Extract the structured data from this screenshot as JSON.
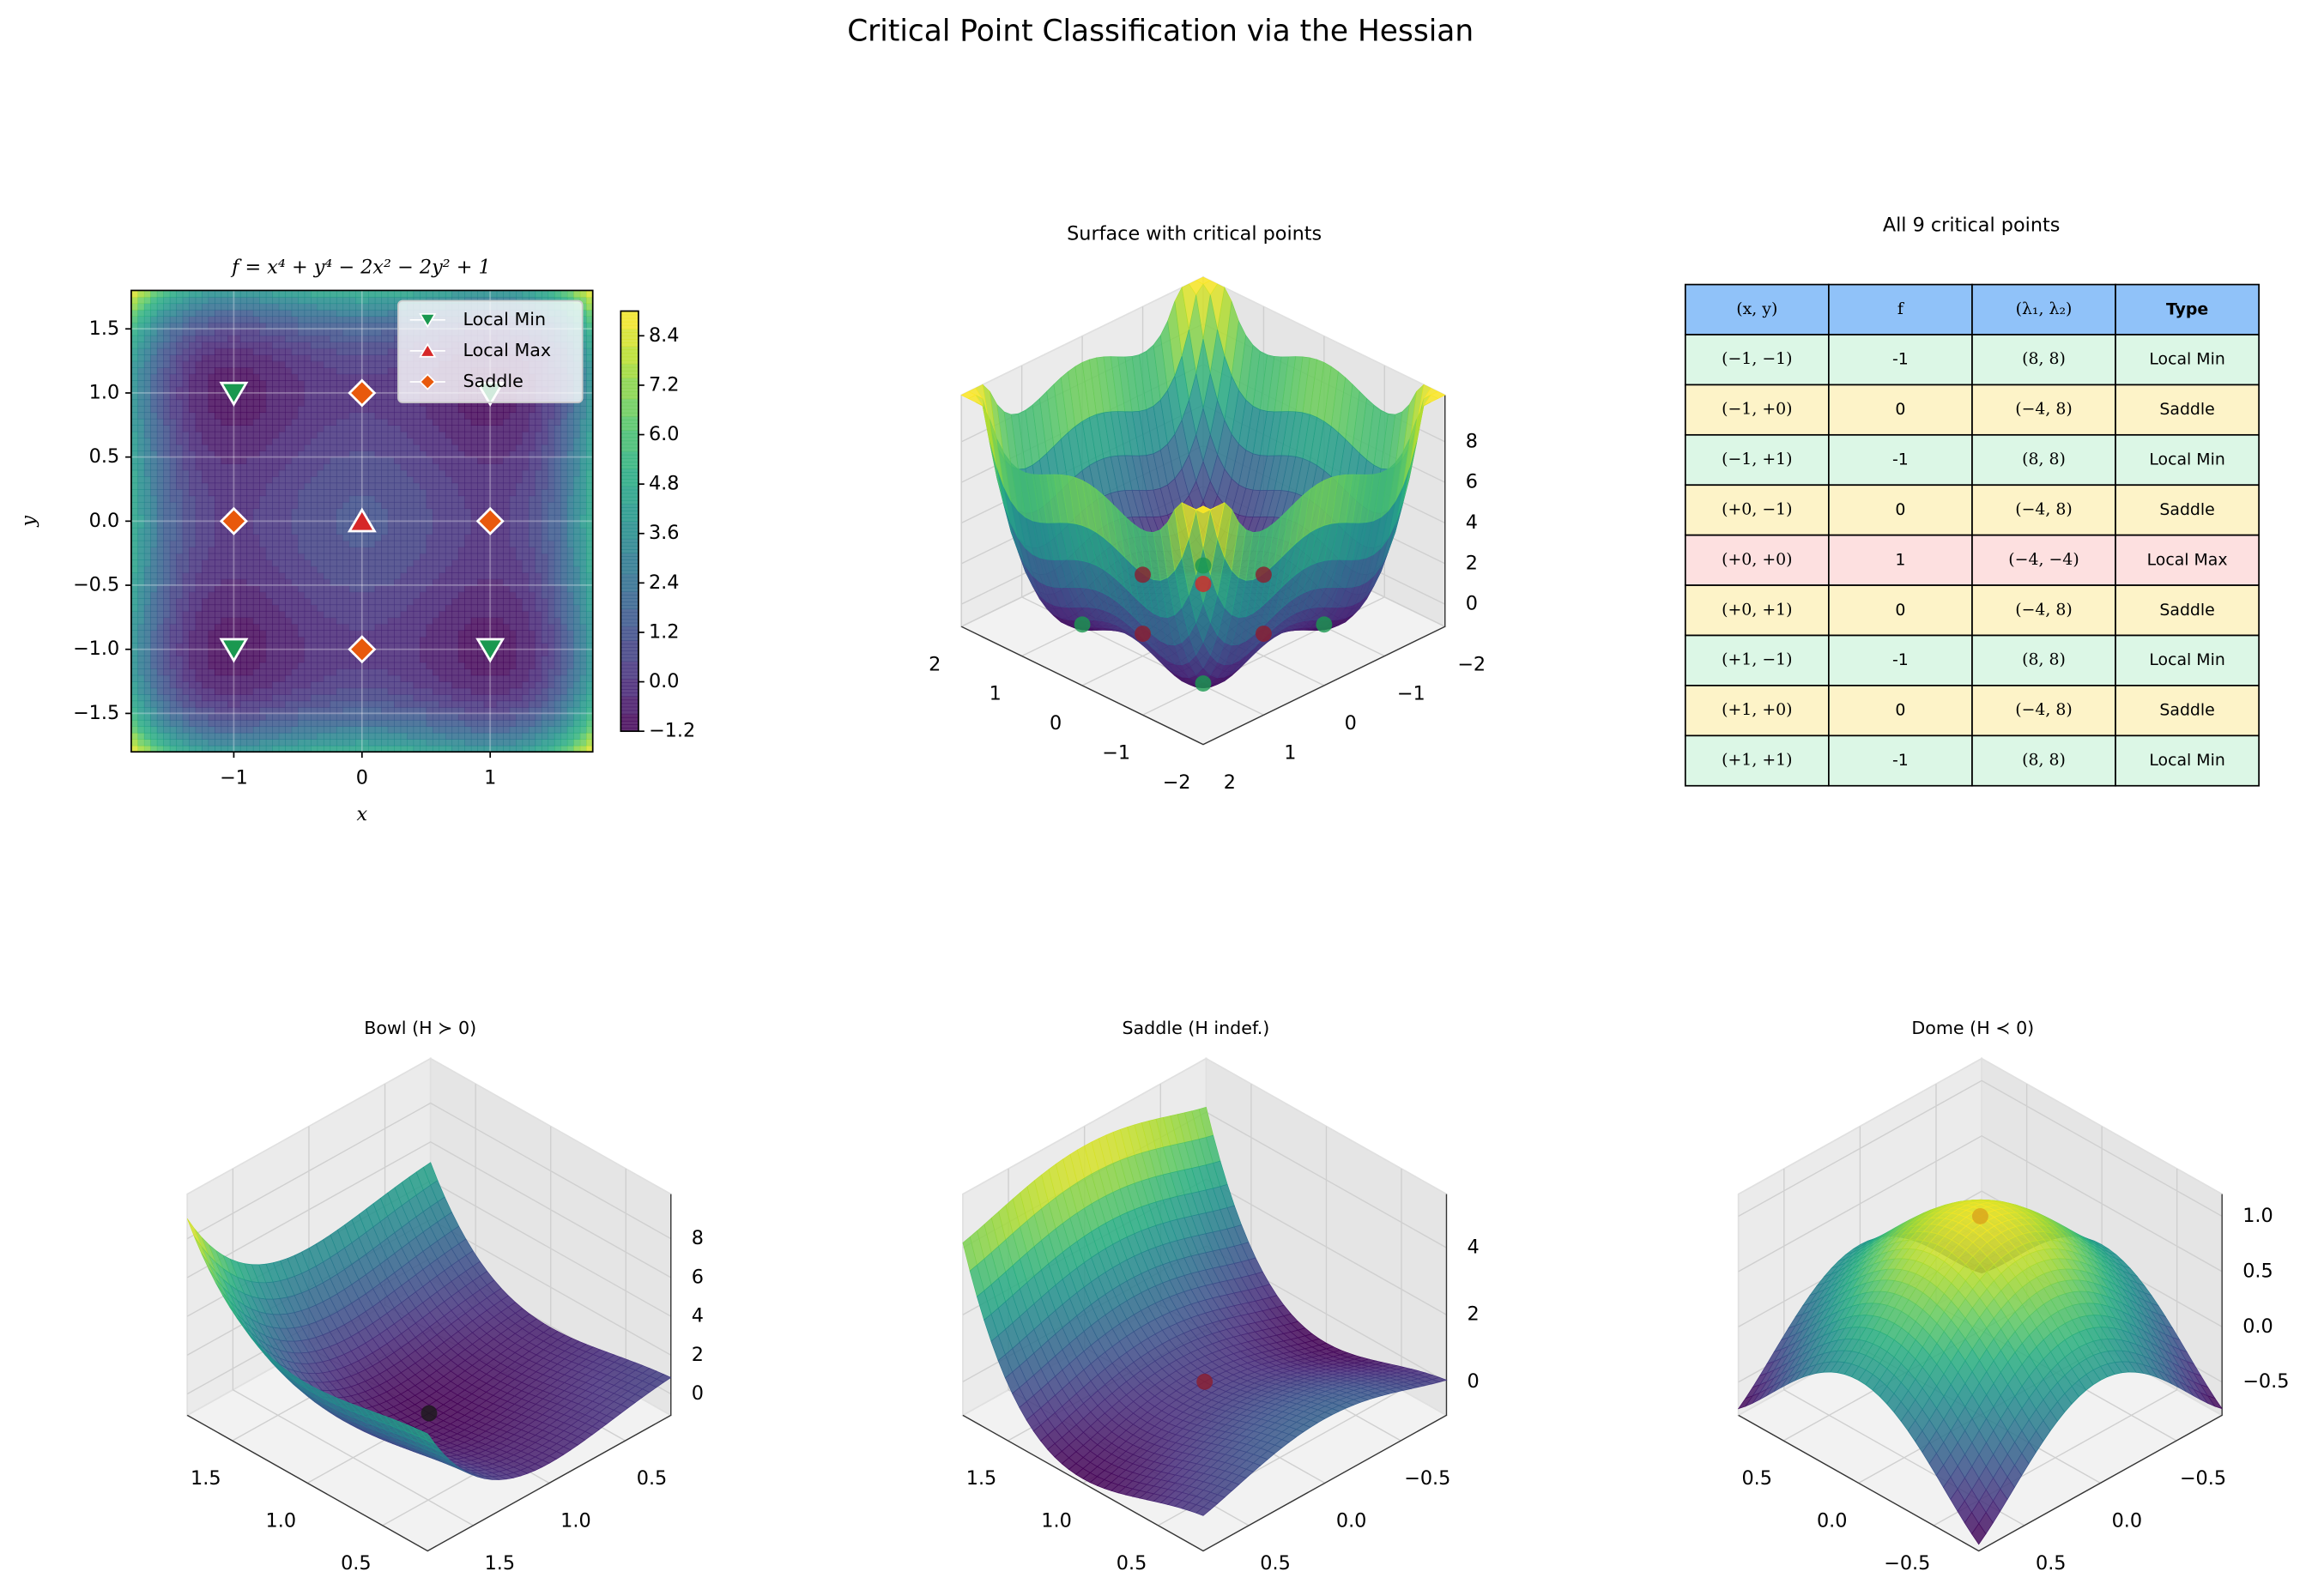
{
  "title": "Critical Point Classification via the Hessian",
  "chart_data": [
    {
      "type": "contour",
      "title": "f = x⁴ + y⁴ − 2x² − 2y² + 1",
      "x_label": "x",
      "y_label": "y",
      "xlim": [
        -1.8,
        1.8
      ],
      "ylim": [
        -1.8,
        1.8
      ],
      "xticks": [
        {
          "value": -1,
          "label": "−1"
        },
        0,
        1
      ],
      "yticks": [
        {
          "value": -1.5,
          "label": "−1.5"
        },
        {
          "value": -1,
          "label": "−1.0"
        },
        {
          "value": -0.5,
          "label": "−0.5"
        },
        {
          "value": 0,
          "label": "0.0"
        },
        0.5,
        {
          "value": 1,
          "label": "1.0"
        },
        1.5
      ],
      "grid": true,
      "colormap": "viridis",
      "legend": "upper right",
      "colorbar": {
        "lim": [
          -1.2,
          9.0
        ],
        "ticks": [
          {
            "value": -1.2,
            "label": "−1.2"
          },
          {
            "value": 0,
            "label": "0.0"
          },
          1.2,
          2.4,
          3.6,
          4.8,
          {
            "value": 6,
            "label": "6.0"
          },
          7.2,
          8.4
        ]
      },
      "series": [
        {
          "name": "Local Min",
          "color": "#1a9850",
          "marker": "v",
          "x": [
            -1,
            -1,
            1,
            1
          ],
          "y": [
            -1,
            1,
            -1,
            1
          ]
        },
        {
          "name": "Local Max",
          "color": "#d62728",
          "marker": "^",
          "x": [
            0
          ],
          "y": [
            0
          ]
        },
        {
          "name": "Saddle",
          "color": "#e8590c",
          "marker": "D",
          "x": [
            -1,
            0,
            0,
            1
          ],
          "y": [
            0,
            -1,
            1,
            0
          ]
        }
      ]
    },
    {
      "type": "surface3d",
      "title": "Surface with critical points",
      "colormap": "viridis",
      "xlim": [
        -2,
        2
      ],
      "ylim": [
        -2,
        2
      ],
      "zlim": [
        -1.1,
        10.3
      ],
      "xticks": [
        {
          "value": -2,
          "label": "−2"
        },
        {
          "value": -1,
          "label": "−1"
        },
        0,
        1,
        2
      ],
      "yticks": [
        {
          "value": -2,
          "label": "−2"
        },
        {
          "value": -1,
          "label": "−1"
        },
        0,
        1,
        2
      ],
      "zticks": [
        0,
        2,
        4,
        6,
        8
      ],
      "points": {
        "x": [
          -1,
          -1,
          -1,
          0,
          0,
          0,
          1,
          1,
          1
        ],
        "y": [
          -1,
          0,
          1,
          -1,
          0,
          1,
          -1,
          0,
          1
        ],
        "z": [
          -1,
          0,
          -1,
          0,
          1,
          0,
          -1,
          0,
          -1
        ],
        "colors": [
          "#1a9850",
          "#8b1e2e",
          "#1a9850",
          "#8b1e2e",
          "#d62728",
          "#8b1e2e",
          "#1a9850",
          "#8b1e2e",
          "#1a9850"
        ]
      }
    },
    {
      "type": "surface3d",
      "title": "Bowl (H ≻ 0)",
      "colormap": "viridis",
      "xlim": [
        0.2,
        1.8
      ],
      "ylim": [
        0.2,
        1.8
      ],
      "zlim": [
        -1.1,
        10.3
      ],
      "xticks": [
        0.5,
        {
          "value": 1,
          "label": "1.0"
        },
        1.5
      ],
      "yticks": [
        0.5,
        {
          "value": 1,
          "label": "1.0"
        },
        1.5
      ],
      "zticks": [
        0,
        2,
        4,
        6,
        8
      ],
      "points": {
        "x": [
          1
        ],
        "y": [
          1
        ],
        "z": [
          -1
        ],
        "colors": [
          "#1a1a1a"
        ]
      }
    },
    {
      "type": "surface3d",
      "title": "Saddle (H indef.)",
      "colormap": "viridis",
      "xlim": [
        0.2,
        1.8
      ],
      "ylim": [
        -0.8,
        0.8
      ],
      "zlim": [
        -1.0,
        5.6
      ],
      "xticks": [
        0.5,
        {
          "value": 1,
          "label": "1.0"
        },
        1.5
      ],
      "yticks": [
        {
          "value": -0.5,
          "label": "−0.5"
        },
        {
          "value": 0,
          "label": "0.0"
        },
        0.5
      ],
      "zticks": [
        0,
        2,
        4
      ],
      "points": {
        "x": [
          1
        ],
        "y": [
          0
        ],
        "z": [
          0
        ],
        "colors": [
          "#8b1e2e"
        ]
      }
    },
    {
      "type": "surface3d",
      "title": "Dome (H ≺ 0)",
      "colormap": "viridis",
      "xlim": [
        -0.8,
        0.8
      ],
      "ylim": [
        -0.8,
        0.8
      ],
      "zlim": [
        -0.8,
        1.2
      ],
      "xticks": [
        {
          "value": -0.5,
          "label": "−0.5"
        },
        {
          "value": 0,
          "label": "0.0"
        },
        0.5
      ],
      "yticks": [
        {
          "value": -0.5,
          "label": "−0.5"
        },
        {
          "value": 0,
          "label": "0.0"
        },
        0.5
      ],
      "zticks": [
        {
          "value": -0.5,
          "label": "−0.5"
        },
        {
          "value": 0,
          "label": "0.0"
        },
        0.5,
        {
          "value": 1,
          "label": "1.0"
        }
      ],
      "points": {
        "x": [
          0
        ],
        "y": [
          0
        ],
        "z": [
          1
        ],
        "colors": [
          "#d9a21b"
        ]
      }
    }
  ],
  "table": {
    "title": "All 9 critical points",
    "header": [
      "(x, y)",
      "f",
      "(λ₁, λ₂)",
      "Type"
    ],
    "header_color": "#90c2f9",
    "rows": [
      [
        "(−1, −1)",
        -1,
        "(8, 8)",
        "Local Min"
      ],
      [
        "(−1, +0)",
        0,
        "(−4, 8)",
        "Saddle"
      ],
      [
        "(−1, +1)",
        -1,
        "(8, 8)",
        "Local Min"
      ],
      [
        "(+0, −1)",
        0,
        "(−4, 8)",
        "Saddle"
      ],
      [
        "(+0, +0)",
        1,
        "(−4, −4)",
        "Local Max"
      ],
      [
        "(+0, +1)",
        0,
        "(−4, 8)",
        "Saddle"
      ],
      [
        "(+1, −1)",
        -1,
        "(8, 8)",
        "Local Min"
      ],
      [
        "(+1, +0)",
        0,
        "(−4, 8)",
        "Saddle"
      ],
      [
        "(+1, +1)",
        -1,
        "(8, 8)",
        "Local Min"
      ]
    ],
    "row_colors": [
      "#dcf7e6",
      "#fdf3c8",
      "#dcf7e6",
      "#fdf3c8",
      "#fde0e0",
      "#fdf3c8",
      "#dcf7e6",
      "#fdf3c8",
      "#dcf7e6"
    ]
  }
}
